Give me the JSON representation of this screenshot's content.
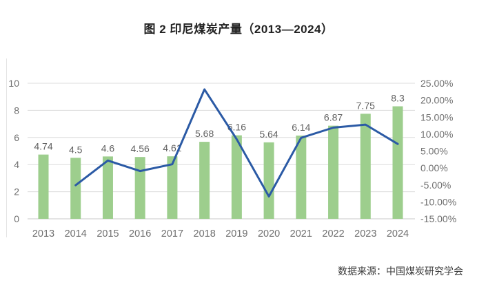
{
  "page": {
    "title": "图 2 印尼煤炭产量（2013—2024）",
    "source": "数据来源：中国煤炭研究学会"
  },
  "chart_data": {
    "type": "bar",
    "subtype": "combo-bar-line-dual-axis",
    "title": "图 2 印尼煤炭产量（2013—2024）",
    "categories": [
      "2013",
      "2014",
      "2015",
      "2016",
      "2017",
      "2018",
      "2019",
      "2020",
      "2021",
      "2022",
      "2023",
      "2024"
    ],
    "series": [
      {
        "id": "production-bars",
        "type": "bar",
        "axis": "left",
        "values": [
          4.74,
          4.5,
          4.6,
          4.56,
          4.61,
          5.68,
          6.16,
          5.64,
          6.14,
          6.87,
          7.75,
          8.3
        ],
        "data_labels": [
          "4.74",
          "4.5",
          "4.6",
          "4.56",
          "4.61",
          "5.68",
          "6.16",
          "5.64",
          "6.14",
          "6.87",
          "7.75",
          "8.3"
        ],
        "color": "#9dce8d"
      },
      {
        "id": "yoy-growth-line",
        "type": "line",
        "axis": "right",
        "values": [
          null,
          -5.1,
          2.2,
          -0.9,
          1.1,
          23.2,
          8.5,
          -8.4,
          8.9,
          11.9,
          12.8,
          7.1
        ],
        "color": "#2b5aa5"
      }
    ],
    "left_axis": {
      "min": 0,
      "max": 10,
      "step": 2,
      "ticks": [
        "0",
        "2",
        "4",
        "6",
        "8",
        "10"
      ]
    },
    "right_axis": {
      "min": -15,
      "max": 25,
      "step": 5,
      "ticks": [
        "25.00%",
        "20.00%",
        "15.00%",
        "10.00%",
        "5.00%",
        "0.00%",
        "-5.00%",
        "-10.00%",
        "-15.00%"
      ]
    },
    "grid": true,
    "legend_position": "none",
    "source": "数据来源：中国煤炭研究学会",
    "colors": {
      "grid": "#dcdcdc",
      "baseline": "#c9c9c9",
      "axis_text": "#6f6f6f",
      "bar_label_text": "#606060",
      "edge_line": "#e4e4e4"
    }
  }
}
